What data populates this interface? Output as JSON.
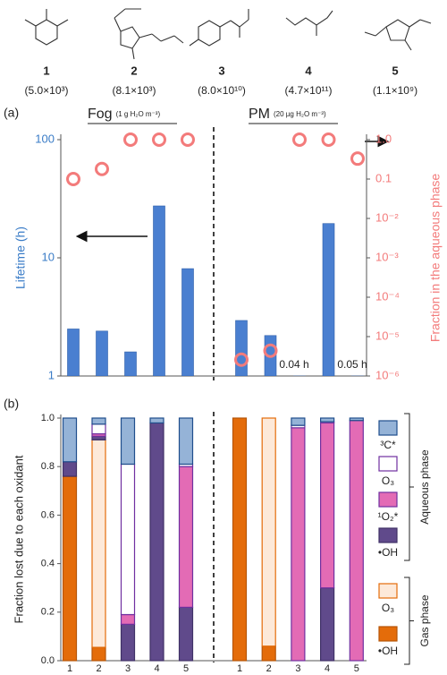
{
  "compounds": [
    {
      "label": "1",
      "value": "(5.0×10³)"
    },
    {
      "label": "2",
      "value": "(8.1×10³)"
    },
    {
      "label": "3",
      "value": "(8.0×10¹⁰)"
    },
    {
      "label": "4",
      "value": "(4.7×10¹¹)"
    },
    {
      "label": "5",
      "value": "(1.1×10⁹)"
    }
  ],
  "chart_data": [
    {
      "type": "bar",
      "panel": "(a)",
      "group_labels": [
        {
          "name": "Fog",
          "detail": "(1 g H₂O m⁻³)"
        },
        {
          "name": "PM",
          "detail": "(20 µg H₂O m⁻³)"
        }
      ],
      "ylabel": "Lifetime (h)",
      "y2label": "Fraction in the aqueous phase",
      "ylog": true,
      "ylim": [
        1,
        100
      ],
      "yticks": [
        1,
        10,
        100
      ],
      "y2log": true,
      "y2lim": [
        1e-06,
        1
      ],
      "y2ticks": [
        {
          "value": 1e-06,
          "label": "10⁻⁶"
        },
        {
          "value": 1e-05,
          "label": "10⁻⁵"
        },
        {
          "value": 0.0001,
          "label": "10⁻⁴"
        },
        {
          "value": 0.001,
          "label": "10⁻³"
        },
        {
          "value": 0.01,
          "label": "10⁻²"
        },
        0.1,
        {
          "value": 1,
          "label": "1.0"
        }
      ],
      "series": [
        {
          "color": "#4a7fd0",
          "values": [
            2.5,
            2.4,
            1.6,
            27.5,
            8.1,
            2.95,
            2.2,
            0.04,
            19.5,
            0.05
          ],
          "value_labels": [
            null,
            null,
            null,
            null,
            null,
            null,
            null,
            "0.04 h",
            null,
            "0.05 h"
          ]
        },
        {
          "axis": "y2",
          "marker": "circle",
          "color": "#f37b7b",
          "values": [
            0.1,
            0.18,
            1,
            1,
            1,
            2.6e-06,
            4.4e-06,
            1,
            1,
            0.33
          ]
        }
      ]
    },
    {
      "type": "stacked_bar",
      "panel": "(b)",
      "categories": [
        "1",
        "2",
        "3",
        "4",
        "5",
        "1",
        "2",
        "3",
        "4",
        "5"
      ],
      "ylabel": "Fraction lost due to each oxidant",
      "ylim": [
        0,
        1
      ],
      "yticks": [
        {
          "value": 0,
          "label": "0.0"
        },
        {
          "value": 0.2,
          "label": "0.2"
        },
        {
          "value": 0.4,
          "label": "0.4"
        },
        {
          "value": 0.6,
          "label": "0.6"
        },
        {
          "value": 0.8,
          "label": "0.8"
        },
        {
          "value": 1,
          "label": "1.0"
        }
      ],
      "legend_groups": [
        "Aqueous phase",
        "Gas phase"
      ],
      "series": [
        {
          "name": "•OH",
          "color": "#e46c0a",
          "edgecolor": "#b65508",
          "values": [
            0.76,
            0.055,
            0,
            0,
            0,
            1.0,
            0.06,
            0,
            0,
            0
          ]
        },
        {
          "name": "O₃",
          "color": "#fde9d9",
          "edgecolor": "#e46c0a",
          "values": [
            0,
            0.855,
            0,
            0,
            0,
            0,
            0.94,
            0,
            0,
            0
          ]
        },
        {
          "name": "•OH",
          "color": "#604a8b",
          "edgecolor": "#3f3166",
          "values": [
            0.06,
            0.015,
            0.15,
            0.98,
            0.22,
            0,
            0,
            0,
            0.3,
            0
          ]
        },
        {
          "name": "¹O₂*",
          "color": "#e36bb5",
          "edgecolor": "#7030a0",
          "values": [
            0,
            0.01,
            0.04,
            0,
            0.58,
            0,
            0,
            0.96,
            0.68,
            0.99
          ]
        },
        {
          "name": "O₃",
          "color": "#ffffff",
          "edgecolor": "#7030a0",
          "values": [
            0,
            0.04,
            0.62,
            0,
            0.01,
            0,
            0,
            0.01,
            0.005,
            0
          ]
        },
        {
          "name": "³C*",
          "color": "#95b3d7",
          "edgecolor": "#1f4e8c",
          "values": [
            0.18,
            0.025,
            0.19,
            0.02,
            0.19,
            0,
            0,
            0.03,
            0.015,
            0.01
          ]
        }
      ]
    }
  ]
}
